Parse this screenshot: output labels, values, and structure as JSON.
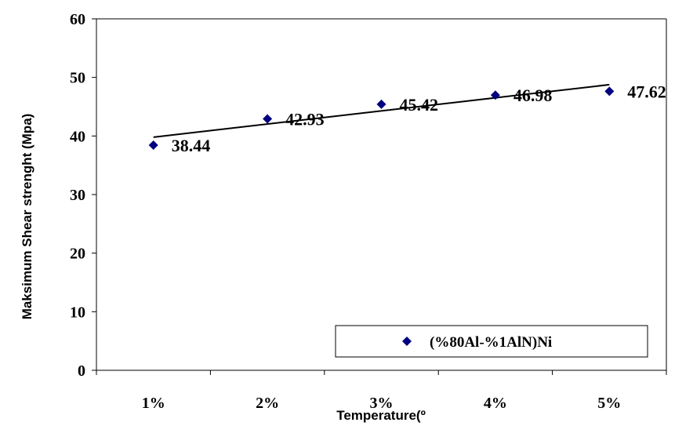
{
  "chart_data": {
    "type": "scatter",
    "categories": [
      "1%",
      "2%",
      "3%",
      "4%",
      "5%"
    ],
    "series": [
      {
        "name": "(%80Al-%1AlN)Ni",
        "values": [
          38.44,
          42.93,
          45.42,
          46.98,
          47.62
        ],
        "color": "#000080"
      }
    ],
    "data_labels": [
      "38.44",
      "42.93",
      "45.42",
      "46.98",
      "47.62"
    ],
    "trendline": {
      "type": "linear",
      "color": "#000000"
    },
    "xlabel": "Temperature(º",
    "ylabel": "Maksimum Shear strenght (Mpa)",
    "ylim": [
      0,
      60
    ],
    "yticks": [
      "0",
      "10",
      "20",
      "30",
      "40",
      "50",
      "60"
    ],
    "grid": false,
    "legend_position": "bottom-right"
  }
}
